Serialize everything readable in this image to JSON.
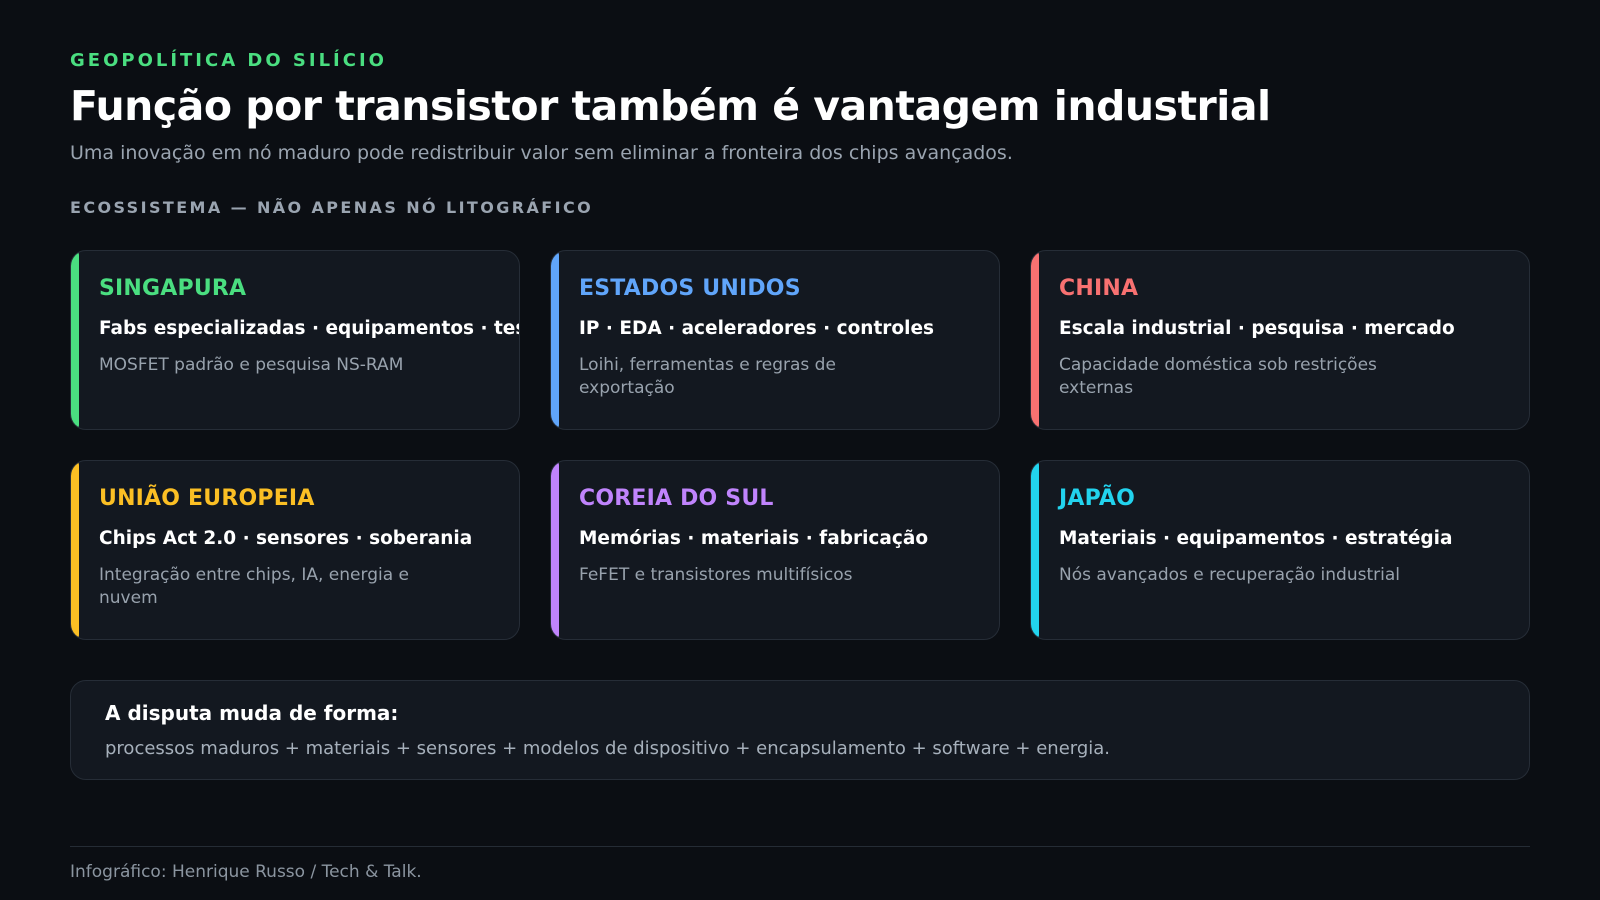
{
  "header": {
    "eyebrow": "GEOPOLÍTICA DO SILÍCIO",
    "title": "Função por transistor também é vantagem industrial",
    "subtitle": "Uma inovação em nó maduro pode redistribuir valor sem eliminar a fronteira dos chips avançados."
  },
  "section": {
    "label": "ECOSSISTEMA — NÃO APENAS NÓ LITOGRÁFICO"
  },
  "colors": {
    "background": "#0b0e13",
    "green": "#4ade80",
    "blue": "#60a5fa",
    "red": "#f87171",
    "yellow": "#fbbf24",
    "purple": "#c084fc",
    "cyan": "#22d3ee"
  },
  "cards": [
    {
      "name": "SINGAPURA",
      "focus": "Fabs especializadas · equipamentos · teste",
      "detail": "MOSFET padrão e pesquisa NS-RAM",
      "color": "#4ade80"
    },
    {
      "name": "ESTADOS UNIDOS",
      "focus": "IP · EDA · aceleradores · controles",
      "detail": "Loihi, ferramentas e regras de exportação",
      "color": "#60a5fa"
    },
    {
      "name": "CHINA",
      "focus": "Escala industrial · pesquisa · mercado",
      "detail": "Capacidade doméstica sob restrições externas",
      "color": "#f87171"
    },
    {
      "name": "UNIÃO EUROPEIA",
      "focus": "Chips Act 2.0 · sensores · soberania",
      "detail": "Integração entre chips, IA, energia e nuvem",
      "color": "#fbbf24"
    },
    {
      "name": "COREIA DO SUL",
      "focus": "Memórias · materiais · fabricação",
      "detail": "FeFET e transistores multifísicos",
      "color": "#c084fc"
    },
    {
      "name": "JAPÃO",
      "focus": "Materiais · equipamentos · estratégia",
      "detail": "Nós avançados e recuperação industrial",
      "color": "#22d3ee"
    }
  ],
  "summary": {
    "heading": "A disputa muda de forma:",
    "body": "processos maduros + materiais + sensores + modelos de dispositivo + encapsulamento + software + energia."
  },
  "footer": {
    "credit": "Infográfico: Henrique Russo / Tech & Talk."
  }
}
